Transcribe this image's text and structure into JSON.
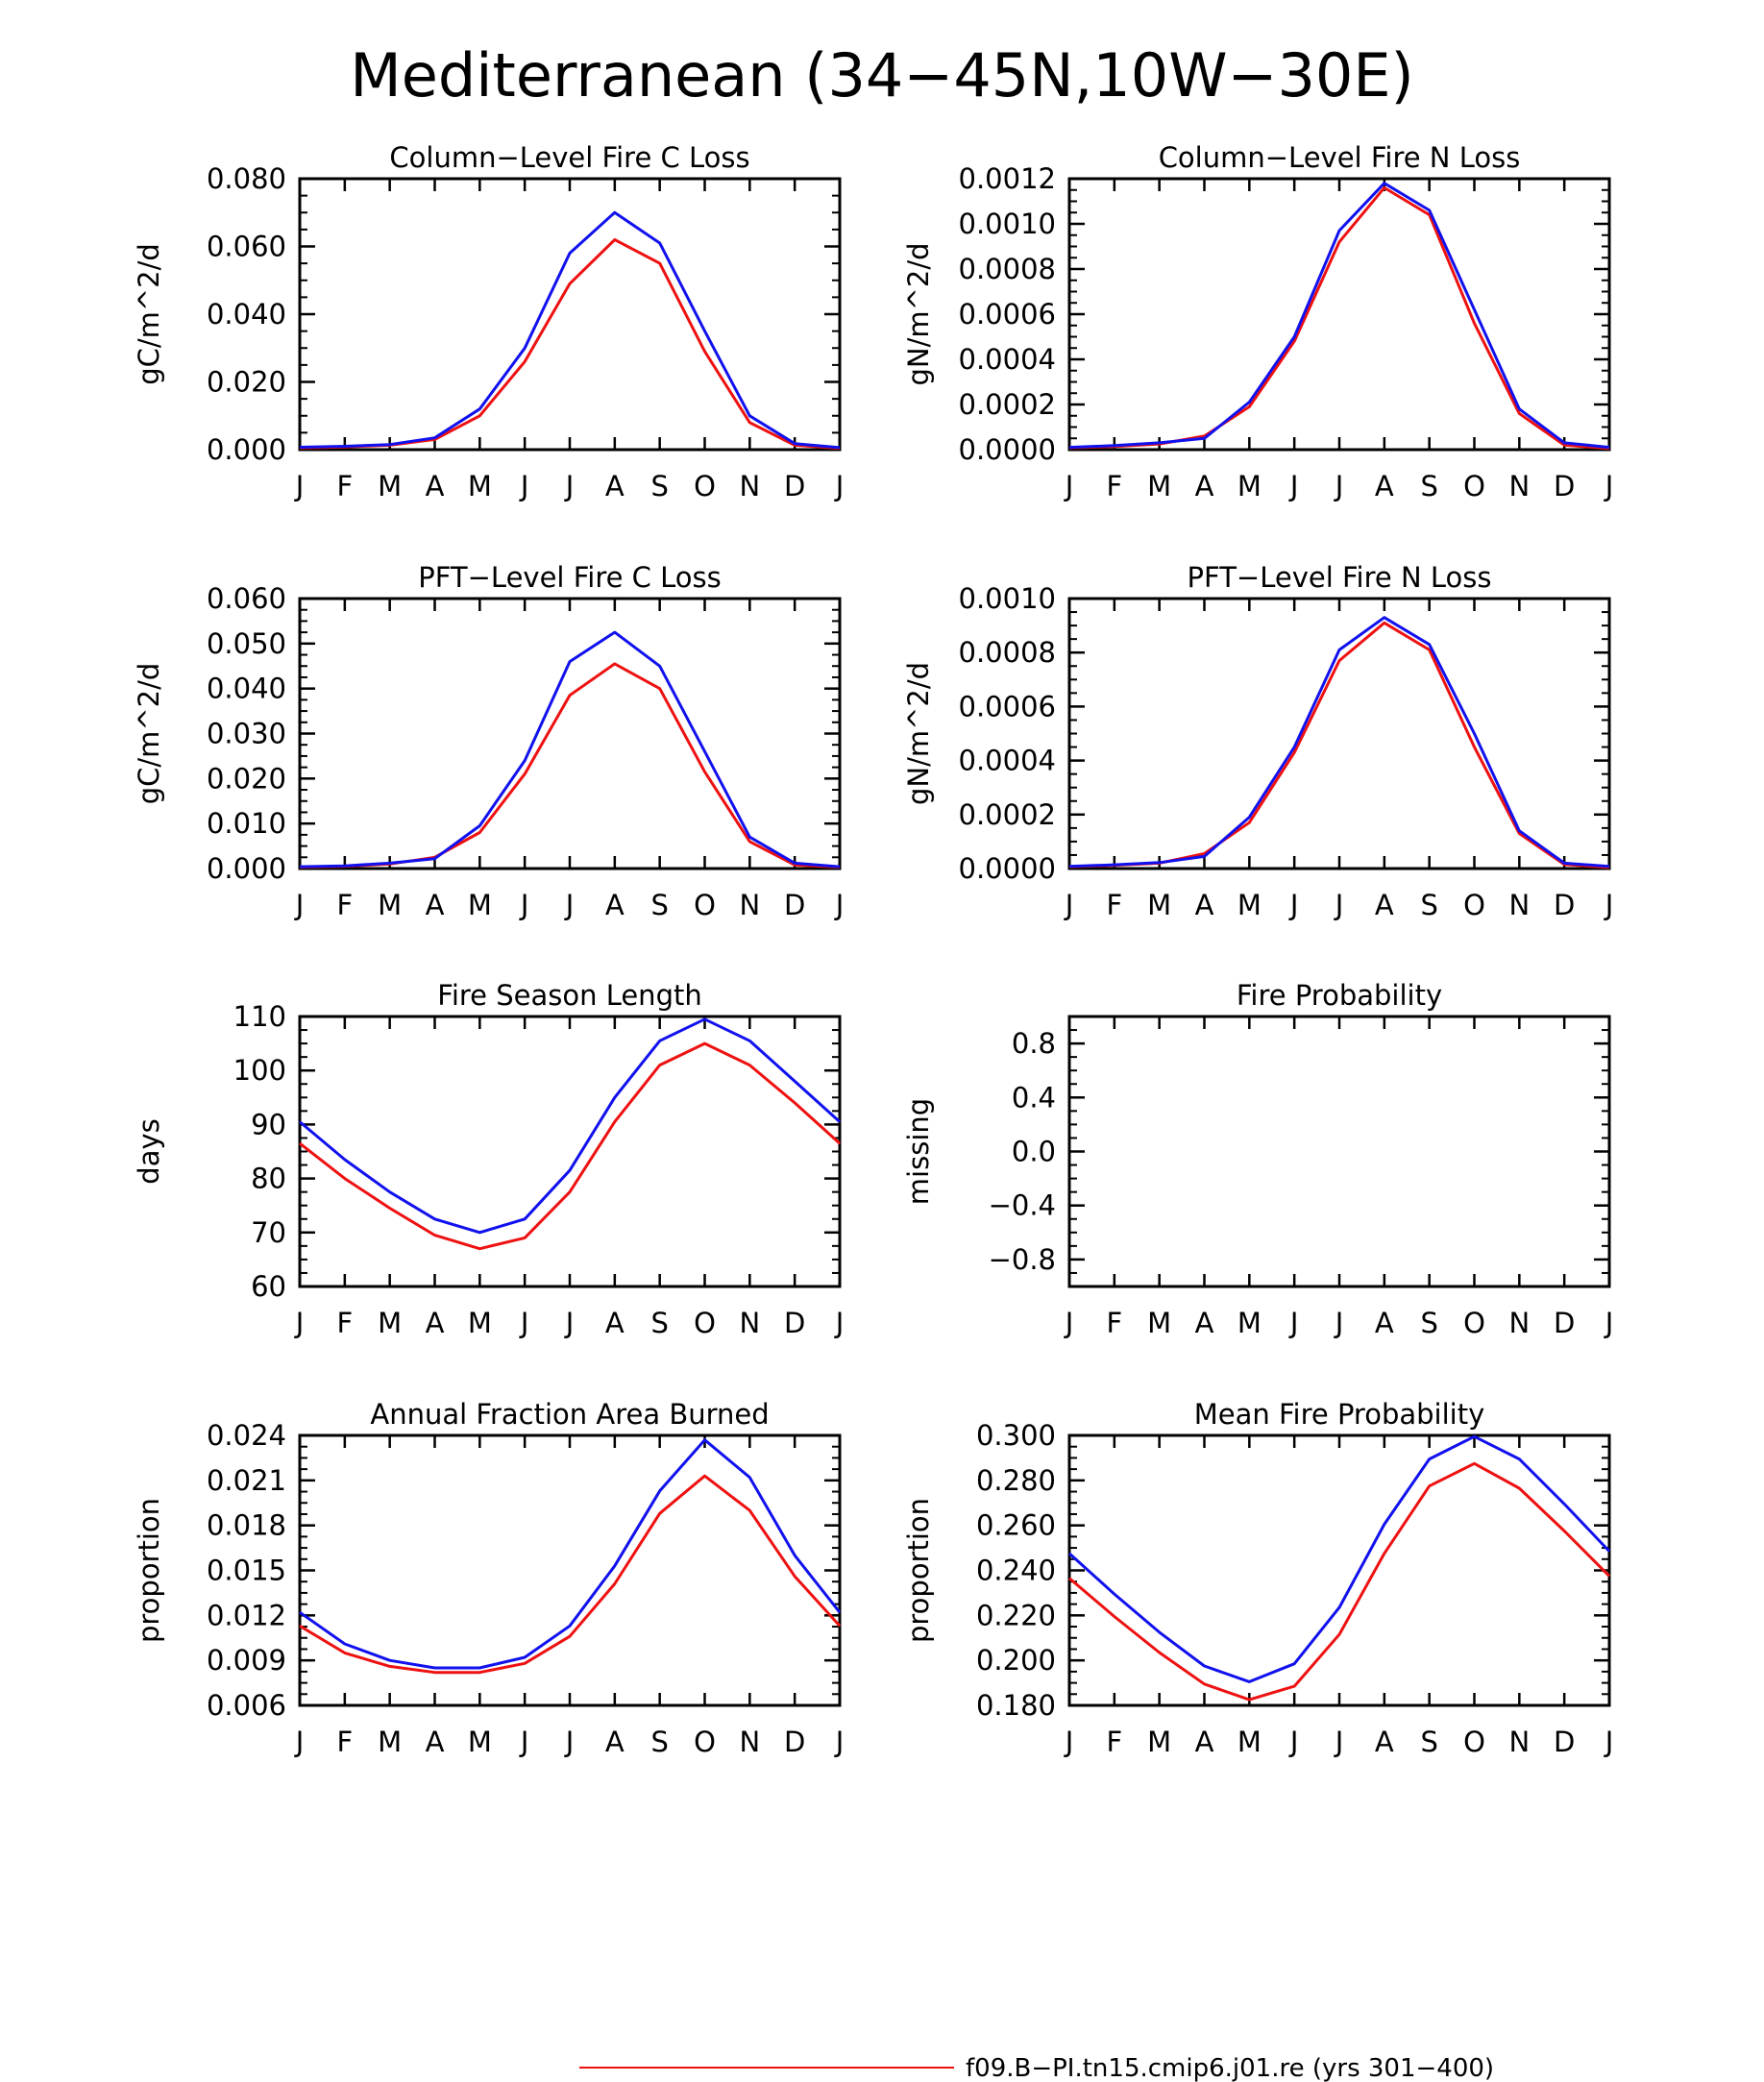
{
  "title": "Mediterranean (34−45N,10W−30E)",
  "months": [
    "J",
    "F",
    "M",
    "A",
    "M",
    "J",
    "J",
    "A",
    "S",
    "O",
    "N",
    "D",
    "J"
  ],
  "colors": {
    "control": "#ee1111",
    "case": "#1111ee"
  },
  "legend": [
    {
      "label": "f09.B−PI.tn15.cmip6.j01.re (yrs 301−400)",
      "color": "#ee1111"
    }
  ],
  "chart_data": [
    {
      "type": "line",
      "title": "Column−Level Fire C Loss",
      "ylabel": "gC/m^2/d",
      "ylim": [
        0,
        0.08
      ],
      "yticks": [
        "0.000",
        "0.020",
        "0.040",
        "0.060",
        "0.080"
      ],
      "yticks_values": [
        0,
        0.02,
        0.04,
        0.06,
        0.08
      ],
      "series": [
        {
          "values": [
            0.0005,
            0.0008,
            0.0013,
            0.003,
            0.01,
            0.026,
            0.049,
            0.062,
            0.055,
            0.029,
            0.008,
            0.0013,
            0.0004
          ]
        },
        {
          "values": [
            0.0007,
            0.001,
            0.0015,
            0.0035,
            0.012,
            0.03,
            0.058,
            0.07,
            0.061,
            0.035,
            0.01,
            0.0018,
            0.0006
          ]
        }
      ]
    },
    {
      "type": "line",
      "title": "Column−Level Fire N Loss",
      "ylabel": "gN/m^2/d",
      "ylim": [
        0,
        0.0012
      ],
      "yticks": [
        "0.0000",
        "0.0002",
        "0.0004",
        "0.0006",
        "0.0008",
        "0.0010",
        "0.0012"
      ],
      "yticks_values": [
        0,
        0.0002,
        0.0004,
        0.0006,
        0.0008,
        0.001,
        0.0012
      ],
      "series": [
        {
          "values": [
            8e-06,
            1.4e-05,
            2.5e-05,
            6e-05,
            0.00019,
            0.00048,
            0.00092,
            0.00116,
            0.00104,
            0.00056,
            0.00016,
            2e-05,
            5e-06
          ]
        },
        {
          "values": [
            1e-05,
            1.8e-05,
            3e-05,
            5e-05,
            0.00021,
            0.0005,
            0.00097,
            0.00118,
            0.00106,
            0.00062,
            0.00018,
            3e-05,
            1e-05
          ]
        }
      ]
    },
    {
      "type": "line",
      "title": "PFT−Level Fire C Loss",
      "ylabel": "gC/m^2/d",
      "ylim": [
        0,
        0.06
      ],
      "yticks": [
        "0.000",
        "0.010",
        "0.020",
        "0.030",
        "0.040",
        "0.050",
        "0.060"
      ],
      "yticks_values": [
        0,
        0.01,
        0.02,
        0.03,
        0.04,
        0.05,
        0.06
      ],
      "series": [
        {
          "values": [
            0.0003,
            0.0005,
            0.001,
            0.0025,
            0.008,
            0.021,
            0.0385,
            0.0455,
            0.04,
            0.0215,
            0.006,
            0.0008,
            0.0003
          ]
        },
        {
          "values": [
            0.0004,
            0.0006,
            0.0012,
            0.0022,
            0.0095,
            0.024,
            0.046,
            0.0525,
            0.045,
            0.026,
            0.007,
            0.0012,
            0.0004
          ]
        }
      ]
    },
    {
      "type": "line",
      "title": "PFT−Level Fire N Loss",
      "ylabel": "gN/m^2/d",
      "ylim": [
        0,
        0.001
      ],
      "yticks": [
        "0.0000",
        "0.0002",
        "0.0004",
        "0.0006",
        "0.0008",
        "0.0010"
      ],
      "yticks_values": [
        0,
        0.0002,
        0.0004,
        0.0006,
        0.0008,
        0.001
      ],
      "series": [
        {
          "values": [
            6e-06,
            1.2e-05,
            2e-05,
            5.5e-05,
            0.00017,
            0.00043,
            0.00077,
            0.00091,
            0.00081,
            0.00045,
            0.00013,
            1.5e-05,
            4e-06
          ]
        },
        {
          "values": [
            8e-06,
            1.4e-05,
            2.2e-05,
            4.5e-05,
            0.00019,
            0.00045,
            0.00081,
            0.00093,
            0.00083,
            0.0005,
            0.00014,
            2e-05,
            8e-06
          ]
        }
      ]
    },
    {
      "type": "line",
      "title": "Fire Season Length",
      "ylabel": "days",
      "ylim": [
        60,
        110
      ],
      "yticks": [
        "60",
        "70",
        "80",
        "90",
        "100",
        "110"
      ],
      "yticks_values": [
        60,
        70,
        80,
        90,
        100,
        110
      ],
      "series": [
        {
          "values": [
            86.5,
            80,
            74.5,
            69.5,
            67,
            69,
            77.5,
            90.5,
            101,
            105,
            101,
            94,
            86.5
          ]
        },
        {
          "values": [
            90.5,
            83.5,
            77.5,
            72.5,
            70,
            72.5,
            81.5,
            95,
            105.5,
            109.5,
            105.5,
            98,
            90.5
          ]
        }
      ]
    },
    {
      "type": "line",
      "title": "Fire Probability",
      "ylabel": "missing",
      "ylim": [
        -1,
        1
      ],
      "yticks": [
        "−0.8",
        "−0.4",
        "0.0",
        "0.4",
        "0.8"
      ],
      "yticks_values": [
        -0.8,
        -0.4,
        0,
        0.4,
        0.8
      ],
      "series": []
    },
    {
      "type": "line",
      "title": "Annual Fraction Area Burned",
      "ylabel": "proportion",
      "ylim": [
        0.006,
        0.024
      ],
      "yticks": [
        "0.006",
        "0.009",
        "0.012",
        "0.015",
        "0.018",
        "0.021",
        "0.024"
      ],
      "yticks_values": [
        0.006,
        0.009,
        0.012,
        0.015,
        0.018,
        0.021,
        0.024
      ],
      "series": [
        {
          "values": [
            0.0113,
            0.0095,
            0.0086,
            0.0082,
            0.0082,
            0.0088,
            0.0106,
            0.0141,
            0.0188,
            0.0213,
            0.019,
            0.0146,
            0.0113
          ]
        },
        {
          "values": [
            0.0122,
            0.0101,
            0.009,
            0.0085,
            0.0085,
            0.0092,
            0.0113,
            0.0153,
            0.0203,
            0.0237,
            0.0212,
            0.016,
            0.0122
          ]
        }
      ]
    },
    {
      "type": "line",
      "title": "Mean Fire Probability",
      "ylabel": "proportion",
      "ylim": [
        0.18,
        0.3
      ],
      "yticks": [
        "0.180",
        "0.200",
        "0.220",
        "0.240",
        "0.260",
        "0.280",
        "0.300"
      ],
      "yticks_values": [
        0.18,
        0.2,
        0.22,
        0.24,
        0.26,
        0.28,
        0.3
      ],
      "series": [
        {
          "values": [
            0.2365,
            0.2195,
            0.2035,
            0.1895,
            0.1825,
            0.1885,
            0.2115,
            0.2475,
            0.2775,
            0.2875,
            0.2765,
            0.2575,
            0.2375
          ]
        },
        {
          "values": [
            0.2475,
            0.2295,
            0.2125,
            0.1975,
            0.1905,
            0.1985,
            0.2235,
            0.2605,
            0.2895,
            0.2995,
            0.2895,
            0.2695,
            0.2485
          ]
        }
      ]
    }
  ]
}
